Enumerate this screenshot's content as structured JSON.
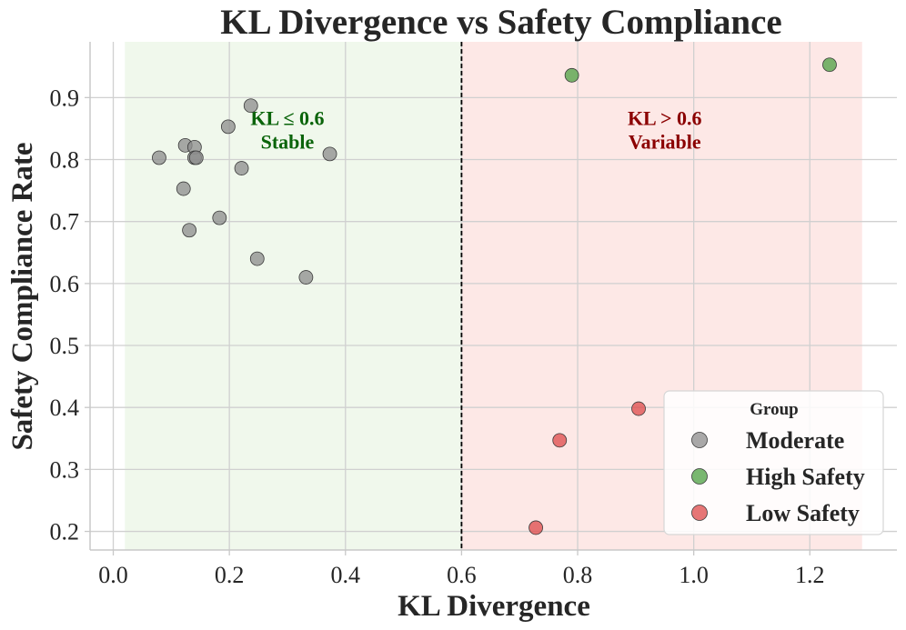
{
  "chart_data": {
    "type": "scatter",
    "title": "KL Divergence vs Safety Compliance",
    "xlabel": "KL Divergence",
    "ylabel": "Safety Compliance Rate",
    "xlim": [
      -0.04,
      1.35
    ],
    "ylim": [
      0.17,
      0.99
    ],
    "xticks": [
      0.0,
      0.2,
      0.4,
      0.6,
      0.8,
      1.0,
      1.2
    ],
    "xtick_labels": [
      "0.0",
      "0.2",
      "0.4",
      "0.6",
      "0.8",
      "1.0",
      "1.2"
    ],
    "yticks": [
      0.2,
      0.3,
      0.4,
      0.5,
      0.6,
      0.7,
      0.8,
      0.9
    ],
    "ytick_labels": [
      "0.2",
      "0.3",
      "0.4",
      "0.5",
      "0.6",
      "0.7",
      "0.8",
      "0.9"
    ],
    "grid": true,
    "threshold": 0.6,
    "regions": [
      {
        "name": "stable",
        "x_range": [
          0.02,
          0.6
        ],
        "color": "#f0f8ec"
      },
      {
        "name": "variable",
        "x_range": [
          0.6,
          1.29
        ],
        "color": "#fde8e6"
      }
    ],
    "annotations": [
      {
        "lines": [
          "KL ≤ 0.6",
          "Stable"
        ],
        "x": 0.3,
        "y": 0.838,
        "color": "#0a640a"
      },
      {
        "lines": [
          "KL > 0.6",
          "Variable"
        ],
        "x": 0.95,
        "y": 0.838,
        "color": "#8b0000"
      }
    ],
    "legend": {
      "title": "Group",
      "position": "bottom-right"
    },
    "series": [
      {
        "name": "Moderate",
        "color": "#8c8c8c",
        "points": [
          {
            "x": 0.079,
            "y": 0.803
          },
          {
            "x": 0.124,
            "y": 0.823
          },
          {
            "x": 0.14,
            "y": 0.82
          },
          {
            "x": 0.14,
            "y": 0.803
          },
          {
            "x": 0.143,
            "y": 0.803
          },
          {
            "x": 0.121,
            "y": 0.753
          },
          {
            "x": 0.131,
            "y": 0.686
          },
          {
            "x": 0.183,
            "y": 0.706
          },
          {
            "x": 0.198,
            "y": 0.853
          },
          {
            "x": 0.221,
            "y": 0.786
          },
          {
            "x": 0.237,
            "y": 0.887
          },
          {
            "x": 0.248,
            "y": 0.64
          },
          {
            "x": 0.332,
            "y": 0.61
          },
          {
            "x": 0.373,
            "y": 0.809
          }
        ]
      },
      {
        "name": "High Safety",
        "color": "#4ca042",
        "points": [
          {
            "x": 0.79,
            "y": 0.936
          },
          {
            "x": 1.234,
            "y": 0.953
          }
        ]
      },
      {
        "name": "Low Safety",
        "color": "#dd4a4a",
        "points": [
          {
            "x": 0.905,
            "y": 0.398
          },
          {
            "x": 0.769,
            "y": 0.347
          },
          {
            "x": 0.728,
            "y": 0.206
          }
        ]
      }
    ]
  }
}
